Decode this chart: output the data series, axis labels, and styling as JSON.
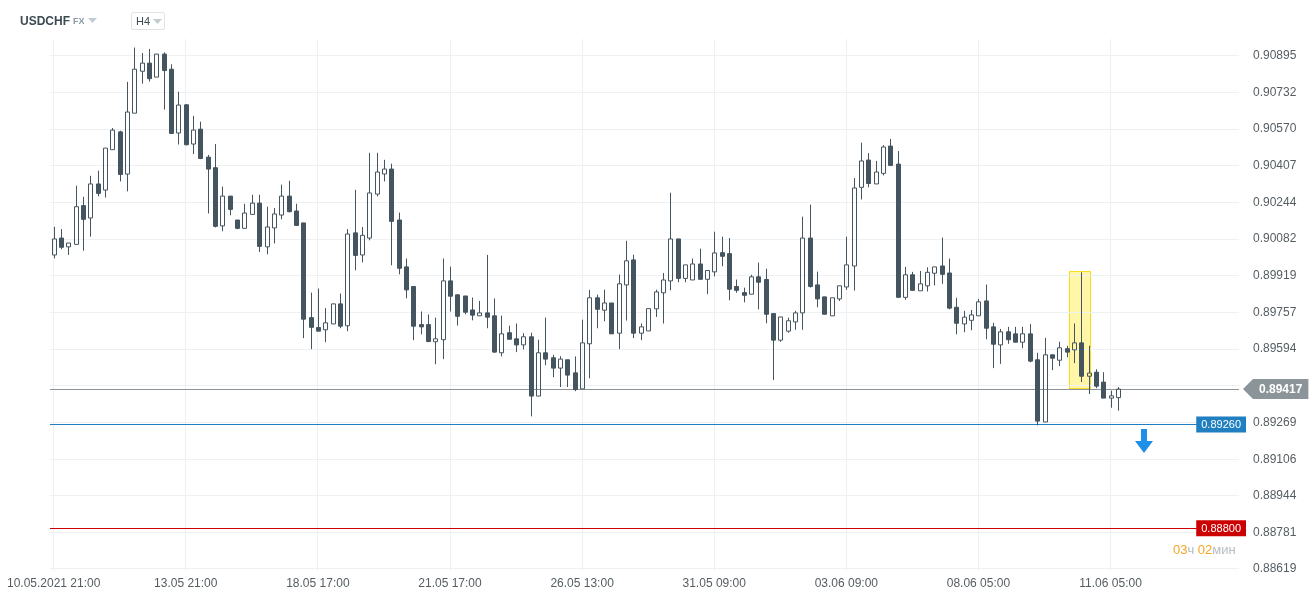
{
  "chart_data": {
    "type": "candlestick",
    "title": "USDCHF",
    "subtitle": "FX",
    "annotations": [
      "H4",
      "03ч 02мин"
    ],
    "color": "#45555f",
    "grid": true,
    "ylim": [
      0.8861,
      0.9097
    ],
    "yticks": [
      0.88619,
      0.88781,
      0.88944,
      0.89106,
      0.89269,
      {
        "value": 0.89431,
        "label": null
      },
      0.89594,
      0.89757,
      0.89919,
      0.90082,
      0.90244,
      0.90407,
      {
        "value": 0.9057,
        "label": "0.90570"
      },
      0.90732,
      0.90895
    ],
    "ref_lines": [
      {
        "axis": "y",
        "value": 0.89417,
        "label": "0.89417",
        "color": "#8a9499"
      },
      {
        "axis": "y",
        "value": 0.8926,
        "label": "0.89260",
        "color": "#1f7fc0"
      },
      {
        "axis": "y",
        "value": 0.888,
        "label": "0.88800",
        "color": "#cc0000"
      }
    ],
    "categories": [
      "10.05.2021 21:00",
      null,
      null,
      null,
      null,
      null,
      null,
      null,
      null,
      null,
      null,
      null,
      null,
      null,
      null,
      null,
      null,
      null,
      "13.05 21:00",
      null,
      null,
      null,
      null,
      null,
      null,
      null,
      null,
      null,
      null,
      null,
      null,
      null,
      null,
      null,
      null,
      null,
      "18.05 17:00",
      null,
      null,
      null,
      null,
      null,
      null,
      null,
      null,
      null,
      null,
      null,
      null,
      null,
      null,
      null,
      null,
      null,
      "21.05 17:00",
      null,
      null,
      null,
      null,
      null,
      null,
      null,
      null,
      null,
      null,
      null,
      null,
      null,
      null,
      null,
      null,
      null,
      "26.05 13:00",
      null,
      null,
      null,
      null,
      null,
      null,
      null,
      null,
      null,
      null,
      null,
      null,
      null,
      null,
      null,
      null,
      null,
      "31.05 09:00",
      null,
      null,
      null,
      null,
      null,
      null,
      null,
      null,
      null,
      null,
      null,
      null,
      null,
      null,
      null,
      null,
      null,
      "03.06 09:00",
      null,
      null,
      null,
      null,
      null,
      null,
      null,
      null,
      null,
      null,
      null,
      null,
      null,
      null,
      null,
      null,
      null,
      "08.06 05:00",
      null,
      null,
      null,
      null,
      null,
      null,
      null,
      null,
      null,
      null,
      null,
      null,
      null,
      null,
      null,
      null,
      null,
      "11.06 05:00",
      null,
      null,
      null,
      null,
      null,
      null,
      null,
      null,
      null,
      null,
      null,
      null,
      null,
      null,
      null,
      null,
      null
    ],
    "ohlc": [
      [
        0.90012,
        0.90137,
        0.89997,
        0.90083
      ],
      [
        0.90087,
        0.90127,
        0.90037,
        0.90046
      ],
      [
        0.90048,
        0.90071,
        0.90012,
        0.90065
      ],
      [
        0.90059,
        0.90319,
        0.90055,
        0.90226
      ],
      [
        0.90231,
        0.9027,
        0.90031,
        0.9017
      ],
      [
        0.90176,
        0.90363,
        0.90093,
        0.90327
      ],
      [
        0.90327,
        0.90386,
        0.90272,
        0.90285
      ],
      [
        0.903,
        0.90486,
        0.90267,
        0.90486
      ],
      [
        0.90479,
        0.90575,
        0.90476,
        0.90566
      ],
      [
        0.90558,
        0.90563,
        0.90338,
        0.90369
      ],
      [
        0.90371,
        0.9078,
        0.90294,
        0.90646
      ],
      [
        0.90641,
        0.90932,
        0.90641,
        0.90836
      ],
      [
        0.90827,
        0.90908,
        0.90772,
        0.90863
      ],
      [
        0.90863,
        0.90926,
        0.90781,
        0.90794
      ],
      [
        0.90801,
        0.90905,
        0.90801,
        0.90903
      ],
      [
        0.90903,
        0.90911,
        0.90657,
        0.9083
      ],
      [
        0.90836,
        0.90858,
        0.90551,
        0.90551
      ],
      [
        0.90553,
        0.90736,
        0.90502,
        0.90677
      ],
      [
        0.90678,
        0.90682,
        0.90498,
        0.90501
      ],
      [
        0.90504,
        0.90629,
        0.9046,
        0.90566
      ],
      [
        0.9057,
        0.90603,
        0.90437,
        0.9044
      ],
      [
        0.90446,
        0.90456,
        0.90196,
        0.90393
      ],
      [
        0.90399,
        0.90504,
        0.90134,
        0.90139
      ],
      [
        0.90141,
        0.90315,
        0.90117,
        0.90273
      ],
      [
        0.90273,
        0.90273,
        0.90188,
        0.90214
      ],
      [
        0.90167,
        0.90167,
        0.90126,
        0.9013
      ],
      [
        0.9013,
        0.90239,
        0.90127,
        0.90198
      ],
      [
        0.90192,
        0.90279,
        0.90188,
        0.90242
      ],
      [
        0.90242,
        0.90279,
        0.90025,
        0.9005
      ],
      [
        0.90048,
        0.90226,
        0.90015,
        0.90136
      ],
      [
        0.90132,
        0.9022,
        0.90063,
        0.90194
      ],
      [
        0.90189,
        0.90324,
        0.9017,
        0.90273
      ],
      [
        0.90273,
        0.90341,
        0.90201,
        0.90204
      ],
      [
        0.90207,
        0.90239,
        0.90143,
        0.90143
      ],
      [
        0.90154,
        0.90154,
        0.89643,
        0.89727
      ],
      [
        0.89734,
        0.89845,
        0.89594,
        0.89691
      ],
      [
        0.8969,
        0.89863,
        0.89674,
        0.89674
      ],
      [
        0.8968,
        0.89776,
        0.89625,
        0.89711
      ],
      [
        0.89706,
        0.89801,
        0.89702,
        0.89795
      ],
      [
        0.89795,
        0.89841,
        0.89687,
        0.89696
      ],
      [
        0.89698,
        0.90127,
        0.89674,
        0.90105
      ],
      [
        0.9011,
        0.90301,
        0.89944,
        0.9001
      ],
      [
        0.90012,
        0.90136,
        0.89979,
        0.90099
      ],
      [
        0.90087,
        0.90465,
        0.90077,
        0.90287
      ],
      [
        0.90282,
        0.90465,
        0.90272,
        0.9038
      ],
      [
        0.90371,
        0.90434,
        0.90338,
        0.90393
      ],
      [
        0.90393,
        0.90417,
        0.89966,
        0.90161
      ],
      [
        0.90167,
        0.902,
        0.89926,
        0.89953
      ],
      [
        0.89959,
        0.89996,
        0.8982,
        0.89857
      ],
      [
        0.89872,
        0.89872,
        0.89634,
        0.89696
      ],
      [
        0.89703,
        0.89761,
        0.8966,
        0.89693
      ],
      [
        0.89703,
        0.89748,
        0.89625,
        0.89628
      ],
      [
        0.89627,
        0.89734,
        0.89527,
        0.8964
      ],
      [
        0.89636,
        0.89996,
        0.8955,
        0.89897
      ],
      [
        0.89897,
        0.8996,
        0.89761,
        0.89829
      ],
      [
        0.89835,
        0.89839,
        0.89699,
        0.8974
      ],
      [
        0.8983,
        0.8983,
        0.89749,
        0.89758
      ],
      [
        0.89768,
        0.89823,
        0.89722,
        0.89745
      ],
      [
        0.89742,
        0.89808,
        0.89742,
        0.89755
      ],
      [
        0.89755,
        0.90012,
        0.89687,
        0.89736
      ],
      [
        0.89742,
        0.89819,
        0.89578,
        0.89581
      ],
      [
        0.89578,
        0.89743,
        0.89562,
        0.89662
      ],
      [
        0.89667,
        0.89698,
        0.89638,
        0.89638
      ],
      [
        0.8964,
        0.89708,
        0.89581,
        0.89613
      ],
      [
        0.89613,
        0.89665,
        0.89593,
        0.89649
      ],
      [
        0.89649,
        0.89667,
        0.89296,
        0.89386
      ],
      [
        0.89386,
        0.89636,
        0.89381,
        0.89578
      ],
      [
        0.89578,
        0.89734,
        0.89523,
        0.8955
      ],
      [
        0.89556,
        0.89569,
        0.8947,
        0.8951
      ],
      [
        0.8951,
        0.89563,
        0.89426,
        0.8955
      ],
      [
        0.89547,
        0.89547,
        0.89426,
        0.89479
      ],
      [
        0.89489,
        0.89562,
        0.89408,
        0.89415
      ],
      [
        0.89418,
        0.89725,
        0.89415,
        0.89622
      ],
      [
        0.89618,
        0.89857,
        0.89465,
        0.89822
      ],
      [
        0.89822,
        0.89836,
        0.89687,
        0.89771
      ],
      [
        0.89767,
        0.89858,
        0.89718,
        0.89799
      ],
      [
        0.89799,
        0.89799,
        0.89662,
        0.89662
      ],
      [
        0.89665,
        0.89925,
        0.89594,
        0.89884
      ],
      [
        0.89879,
        0.90075,
        0.89721,
        0.89986
      ],
      [
        0.8999,
        0.90013,
        0.89643,
        0.89665
      ],
      [
        0.89665,
        0.89708,
        0.89634,
        0.89693
      ],
      [
        0.89675,
        0.89779,
        0.89675,
        0.89774
      ],
      [
        0.89773,
        0.89858,
        0.89737,
        0.89848
      ],
      [
        0.89844,
        0.89932,
        0.89708,
        0.89901
      ],
      [
        0.89897,
        0.90288,
        0.89855,
        0.90083
      ],
      [
        0.90083,
        0.90083,
        0.89891,
        0.89908
      ],
      [
        0.89908,
        0.89974,
        0.89891,
        0.89968
      ],
      [
        0.89901,
        0.89996,
        0.89901,
        0.89972
      ],
      [
        0.89972,
        0.9004,
        0.89904,
        0.89904
      ],
      [
        0.89904,
        0.89948,
        0.89838,
        0.89943
      ],
      [
        0.89937,
        0.90115,
        0.89917,
        0.90021
      ],
      [
        0.90022,
        0.90093,
        0.89962,
        0.90006
      ],
      [
        0.90018,
        0.90087,
        0.89811,
        0.8986
      ],
      [
        0.89872,
        0.89903,
        0.89844,
        0.89855
      ],
      [
        0.89845,
        0.89867,
        0.89802,
        0.89833
      ],
      [
        0.89838,
        0.89924,
        0.89838,
        0.89915
      ],
      [
        0.89915,
        0.89978,
        0.89771,
        0.89891
      ],
      [
        0.89903,
        0.89951,
        0.89709,
        0.89749
      ],
      [
        0.89752,
        0.89752,
        0.89457,
        0.89634
      ],
      [
        0.89634,
        0.89742,
        0.89627,
        0.89737
      ],
      [
        0.89674,
        0.89734,
        0.89667,
        0.8972
      ],
      [
        0.89715,
        0.89764,
        0.8968,
        0.89755
      ],
      [
        0.89755,
        0.90182,
        0.8968,
        0.90087
      ],
      [
        0.90087,
        0.90235,
        0.89867,
        0.89872
      ],
      [
        0.89879,
        0.89938,
        0.8978,
        0.89817
      ],
      [
        0.89826,
        0.89826,
        0.89749,
        0.89749
      ],
      [
        0.89742,
        0.89826,
        0.89742,
        0.89822
      ],
      [
        0.89817,
        0.89879,
        0.89808,
        0.89875
      ],
      [
        0.8987,
        0.90093,
        0.89857,
        0.89968
      ],
      [
        0.89963,
        0.90353,
        0.89854,
        0.90309
      ],
      [
        0.90312,
        0.9051,
        0.90258,
        0.90429
      ],
      [
        0.90433,
        0.90464,
        0.90312,
        0.90329
      ],
      [
        0.90327,
        0.90429,
        0.90327,
        0.9038
      ],
      [
        0.90374,
        0.90499,
        0.90365,
        0.90491
      ],
      [
        0.90495,
        0.90527,
        0.90406,
        0.90409
      ],
      [
        0.90415,
        0.90473,
        0.89824,
        0.89824
      ],
      [
        0.89824,
        0.89959,
        0.89813,
        0.89924
      ],
      [
        0.89924,
        0.89937,
        0.89855,
        0.89855
      ],
      [
        0.89853,
        0.89941,
        0.89853,
        0.89884
      ],
      [
        0.89875,
        0.89957,
        0.8985,
        0.89935
      ],
      [
        0.89931,
        0.89963,
        0.89877,
        0.89959
      ],
      [
        0.89963,
        0.90089,
        0.89884,
        0.89926
      ],
      [
        0.89932,
        0.89996,
        0.89771,
        0.89776
      ],
      [
        0.8978,
        0.89822,
        0.8966,
        0.89709
      ],
      [
        0.89706,
        0.89764,
        0.89669,
        0.89736
      ],
      [
        0.89722,
        0.89768,
        0.89678,
        0.89746
      ],
      [
        0.89742,
        0.89817,
        0.89742,
        0.89804
      ],
      [
        0.89808,
        0.89881,
        0.89638,
        0.89687
      ],
      [
        0.89693,
        0.89711,
        0.8951,
        0.89616
      ],
      [
        0.89613,
        0.89684,
        0.89529,
        0.89671
      ],
      [
        0.89671,
        0.89693,
        0.89618,
        0.89636
      ],
      [
        0.89662,
        0.89693,
        0.89625,
        0.89625
      ],
      [
        0.89625,
        0.89693,
        0.89598,
        0.89662
      ],
      [
        0.89662,
        0.89706,
        0.89536,
        0.89541
      ],
      [
        0.89547,
        0.89578,
        0.89256,
        0.89275
      ],
      [
        0.89271,
        0.89644,
        0.89266,
        0.89569
      ],
      [
        0.89569,
        0.89569,
        0.89501,
        0.89554
      ],
      [
        0.89545,
        0.89627,
        0.89519,
        0.896
      ],
      [
        0.89596,
        0.89609,
        0.89558,
        0.89581
      ],
      [
        0.89591,
        0.89708,
        0.89532,
        0.89622
      ],
      [
        0.89622,
        0.89935,
        0.89448,
        0.89474
      ],
      [
        0.89474,
        0.89609,
        0.89395,
        0.89488
      ],
      [
        0.89492,
        0.89505,
        0.89421,
        0.8943
      ],
      [
        0.89448,
        0.89492,
        0.89377,
        0.89377
      ],
      [
        0.89377,
        0.8941,
        0.89334,
        0.89387
      ],
      [
        0.89379,
        0.89426,
        0.89321,
        0.89417
      ],
      null,
      null,
      null,
      null,
      null,
      null,
      null,
      null,
      null,
      null,
      null,
      null,
      null,
      null,
      null,
      null
    ]
  }
}
